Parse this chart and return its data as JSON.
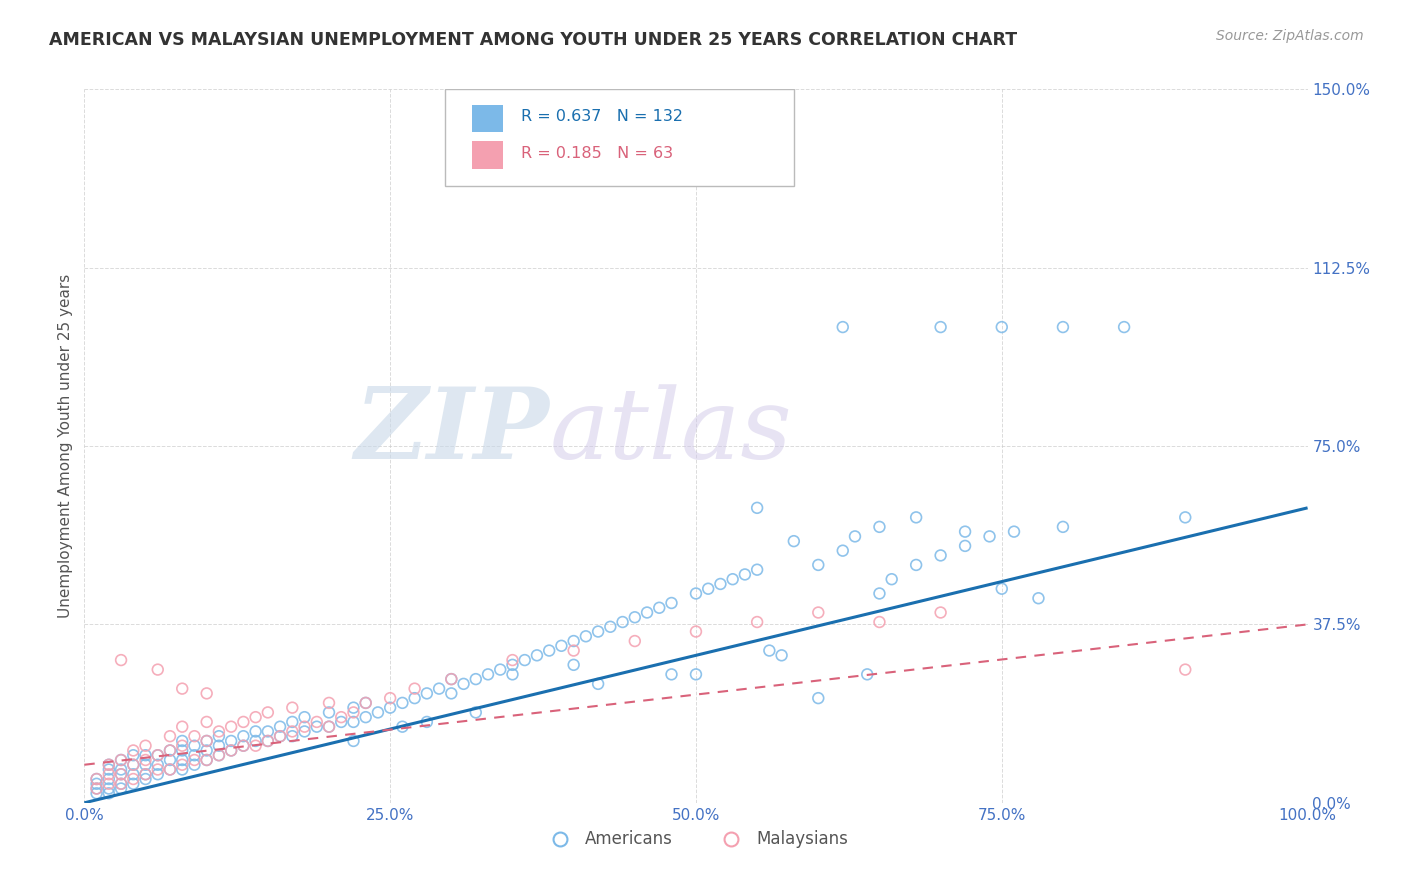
{
  "title": "AMERICAN VS MALAYSIAN UNEMPLOYMENT AMONG YOUTH UNDER 25 YEARS CORRELATION CHART",
  "source": "Source: ZipAtlas.com",
  "ylabel": "Unemployment Among Youth under 25 years",
  "xlim": [
    0.0,
    1.0
  ],
  "ylim": [
    0.0,
    1.5
  ],
  "xticks": [
    0.0,
    0.25,
    0.5,
    0.75,
    1.0
  ],
  "xticklabels": [
    "0.0%",
    "25.0%",
    "50.0%",
    "75.0%",
    "100.0%"
  ],
  "yticks": [
    0.0,
    0.375,
    0.75,
    1.125,
    1.5
  ],
  "yticklabels": [
    "0.0%",
    "37.5%",
    "75.0%",
    "112.5%",
    "150.0%"
  ],
  "american_color": "#7cb9e8",
  "malaysian_color": "#f4a0b0",
  "american_line_color": "#1a6faf",
  "malaysian_line_color": "#d9627a",
  "R_american": 0.637,
  "N_american": 132,
  "R_malaysian": 0.185,
  "N_malaysian": 63,
  "watermark_zip": "ZIP",
  "watermark_atlas": "atlas",
  "background_color": "#ffffff",
  "grid_color": "#cccccc",
  "title_color": "#333333",
  "source_color": "#999999",
  "tick_color": "#4472c4",
  "axis_label_color": "#555555",
  "legend_border_color": "#bbbbbb",
  "legend_blue_fill": "#7cb9e8",
  "legend_pink_fill": "#f4a0b0",
  "legend_text_blue": "#1a6faf",
  "legend_text_pink": "#d9627a",
  "americans_x": [
    0.01,
    0.01,
    0.01,
    0.01,
    0.02,
    0.02,
    0.02,
    0.02,
    0.02,
    0.03,
    0.03,
    0.03,
    0.03,
    0.03,
    0.04,
    0.04,
    0.04,
    0.04,
    0.05,
    0.05,
    0.05,
    0.05,
    0.06,
    0.06,
    0.06,
    0.07,
    0.07,
    0.07,
    0.08,
    0.08,
    0.08,
    0.08,
    0.09,
    0.09,
    0.09,
    0.1,
    0.1,
    0.1,
    0.11,
    0.11,
    0.11,
    0.12,
    0.12,
    0.13,
    0.13,
    0.14,
    0.14,
    0.15,
    0.15,
    0.16,
    0.16,
    0.17,
    0.17,
    0.18,
    0.18,
    0.19,
    0.2,
    0.2,
    0.21,
    0.22,
    0.22,
    0.23,
    0.23,
    0.24,
    0.25,
    0.26,
    0.27,
    0.28,
    0.29,
    0.3,
    0.3,
    0.31,
    0.32,
    0.33,
    0.34,
    0.35,
    0.36,
    0.37,
    0.38,
    0.39,
    0.4,
    0.41,
    0.42,
    0.43,
    0.44,
    0.45,
    0.46,
    0.47,
    0.48,
    0.5,
    0.51,
    0.52,
    0.53,
    0.54,
    0.55,
    0.57,
    0.58,
    0.6,
    0.62,
    0.63,
    0.65,
    0.66,
    0.68,
    0.7,
    0.72,
    0.74,
    0.75,
    0.76,
    0.78,
    0.8,
    0.62,
    0.7,
    0.75,
    0.8,
    0.85,
    0.55,
    0.65,
    0.68,
    0.72,
    0.9,
    0.35,
    0.4,
    0.5,
    0.28,
    0.32,
    0.42,
    0.48,
    0.22,
    0.26,
    0.56,
    0.6,
    0.64
  ],
  "americans_y": [
    0.02,
    0.03,
    0.04,
    0.05,
    0.02,
    0.03,
    0.05,
    0.07,
    0.08,
    0.03,
    0.04,
    0.06,
    0.07,
    0.09,
    0.04,
    0.06,
    0.08,
    0.1,
    0.05,
    0.06,
    0.08,
    0.1,
    0.06,
    0.08,
    0.1,
    0.07,
    0.09,
    0.11,
    0.07,
    0.09,
    0.11,
    0.13,
    0.08,
    0.1,
    0.12,
    0.09,
    0.11,
    0.13,
    0.1,
    0.12,
    0.14,
    0.11,
    0.13,
    0.12,
    0.14,
    0.13,
    0.15,
    0.13,
    0.15,
    0.14,
    0.16,
    0.14,
    0.17,
    0.15,
    0.18,
    0.16,
    0.16,
    0.19,
    0.17,
    0.17,
    0.2,
    0.18,
    0.21,
    0.19,
    0.2,
    0.21,
    0.22,
    0.23,
    0.24,
    0.23,
    0.26,
    0.25,
    0.26,
    0.27,
    0.28,
    0.29,
    0.3,
    0.31,
    0.32,
    0.33,
    0.34,
    0.35,
    0.36,
    0.37,
    0.38,
    0.39,
    0.4,
    0.41,
    0.42,
    0.44,
    0.45,
    0.46,
    0.47,
    0.48,
    0.49,
    0.31,
    0.55,
    0.5,
    0.53,
    0.56,
    0.44,
    0.47,
    0.5,
    0.52,
    0.54,
    0.56,
    0.45,
    0.57,
    0.43,
    0.58,
    1.0,
    1.0,
    1.0,
    1.0,
    1.0,
    0.62,
    0.58,
    0.6,
    0.57,
    0.6,
    0.27,
    0.29,
    0.27,
    0.17,
    0.19,
    0.25,
    0.27,
    0.13,
    0.16,
    0.32,
    0.22,
    0.27
  ],
  "malaysians_x": [
    0.01,
    0.01,
    0.02,
    0.02,
    0.02,
    0.03,
    0.03,
    0.03,
    0.04,
    0.04,
    0.04,
    0.05,
    0.05,
    0.05,
    0.06,
    0.06,
    0.07,
    0.07,
    0.07,
    0.08,
    0.08,
    0.08,
    0.09,
    0.09,
    0.1,
    0.1,
    0.1,
    0.11,
    0.11,
    0.12,
    0.12,
    0.13,
    0.13,
    0.14,
    0.14,
    0.15,
    0.15,
    0.16,
    0.17,
    0.17,
    0.18,
    0.19,
    0.2,
    0.2,
    0.21,
    0.22,
    0.23,
    0.25,
    0.27,
    0.3,
    0.35,
    0.4,
    0.45,
    0.5,
    0.55,
    0.6,
    0.65,
    0.7,
    0.9,
    0.03,
    0.06,
    0.08,
    0.1
  ],
  "malaysians_y": [
    0.03,
    0.05,
    0.04,
    0.06,
    0.08,
    0.04,
    0.06,
    0.09,
    0.05,
    0.08,
    0.11,
    0.06,
    0.09,
    0.12,
    0.07,
    0.1,
    0.07,
    0.11,
    0.14,
    0.08,
    0.12,
    0.16,
    0.09,
    0.14,
    0.09,
    0.13,
    0.17,
    0.1,
    0.15,
    0.11,
    0.16,
    0.12,
    0.17,
    0.12,
    0.18,
    0.13,
    0.19,
    0.14,
    0.15,
    0.2,
    0.16,
    0.17,
    0.16,
    0.21,
    0.18,
    0.19,
    0.21,
    0.22,
    0.24,
    0.26,
    0.3,
    0.32,
    0.34,
    0.36,
    0.38,
    0.4,
    0.38,
    0.4,
    0.28,
    0.3,
    0.28,
    0.24,
    0.23
  ]
}
